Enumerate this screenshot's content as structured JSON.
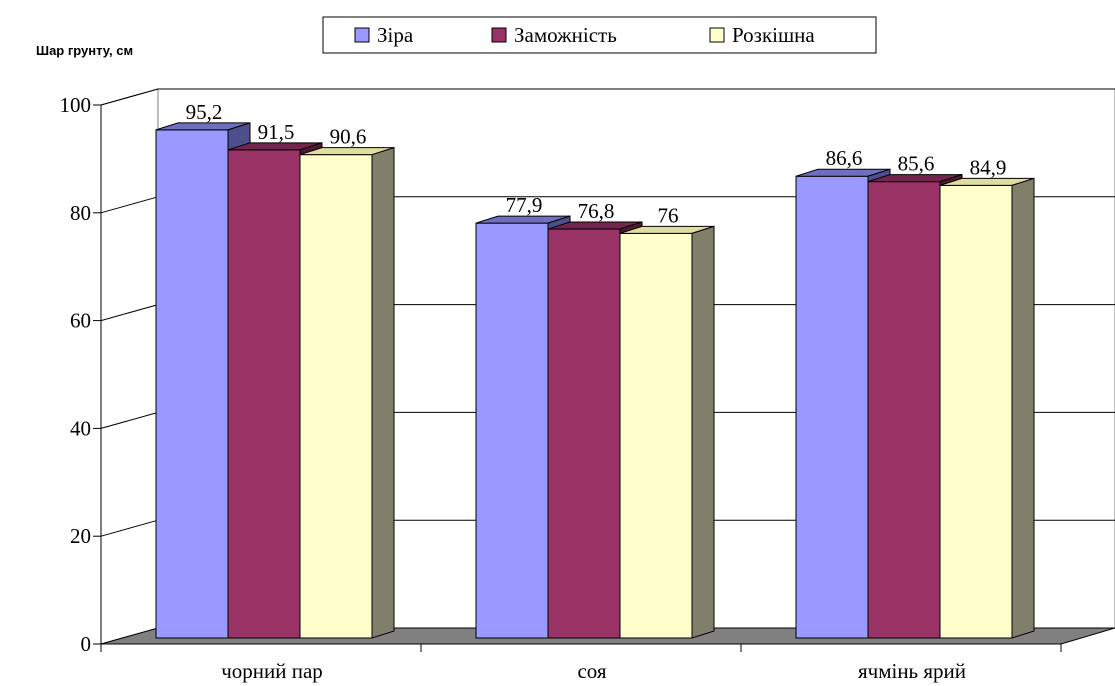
{
  "chart_data": {
    "type": "bar",
    "ylabel": "Шар грунту, см",
    "xlabel": "",
    "ylim": [
      0,
      100
    ],
    "yticks": [
      0,
      20,
      40,
      60,
      80,
      100
    ],
    "categories": [
      "чорний пар",
      "соя",
      "ячмінь ярий"
    ],
    "series": [
      {
        "name": "Зіра",
        "values": [
          95.2,
          77.9,
          86.6
        ],
        "labels": [
          "95,2",
          "77,9",
          "86,6"
        ],
        "color": "#9999ff",
        "top_color": "#6f6fc0",
        "side_color": "#4f4f8e"
      },
      {
        "name": "Заможність",
        "values": [
          91.5,
          76.8,
          85.6
        ],
        "labels": [
          "91,5",
          "76,8",
          "85,6"
        ],
        "color": "#993366",
        "top_color": "#73264d",
        "side_color": "#4d1933"
      },
      {
        "name": "Розкішна",
        "values": [
          90.6,
          76,
          84.9
        ],
        "labels": [
          "90,6",
          "76",
          "84,9"
        ],
        "color": "#ffffcc",
        "top_color": "#dede9e",
        "side_color": "#80806a"
      }
    ],
    "grid": true,
    "legend_position": "top",
    "style": "3d-clustered-column",
    "colors": {
      "floor": "#808080",
      "wall": "#ffffff",
      "grid": "#000000"
    }
  }
}
